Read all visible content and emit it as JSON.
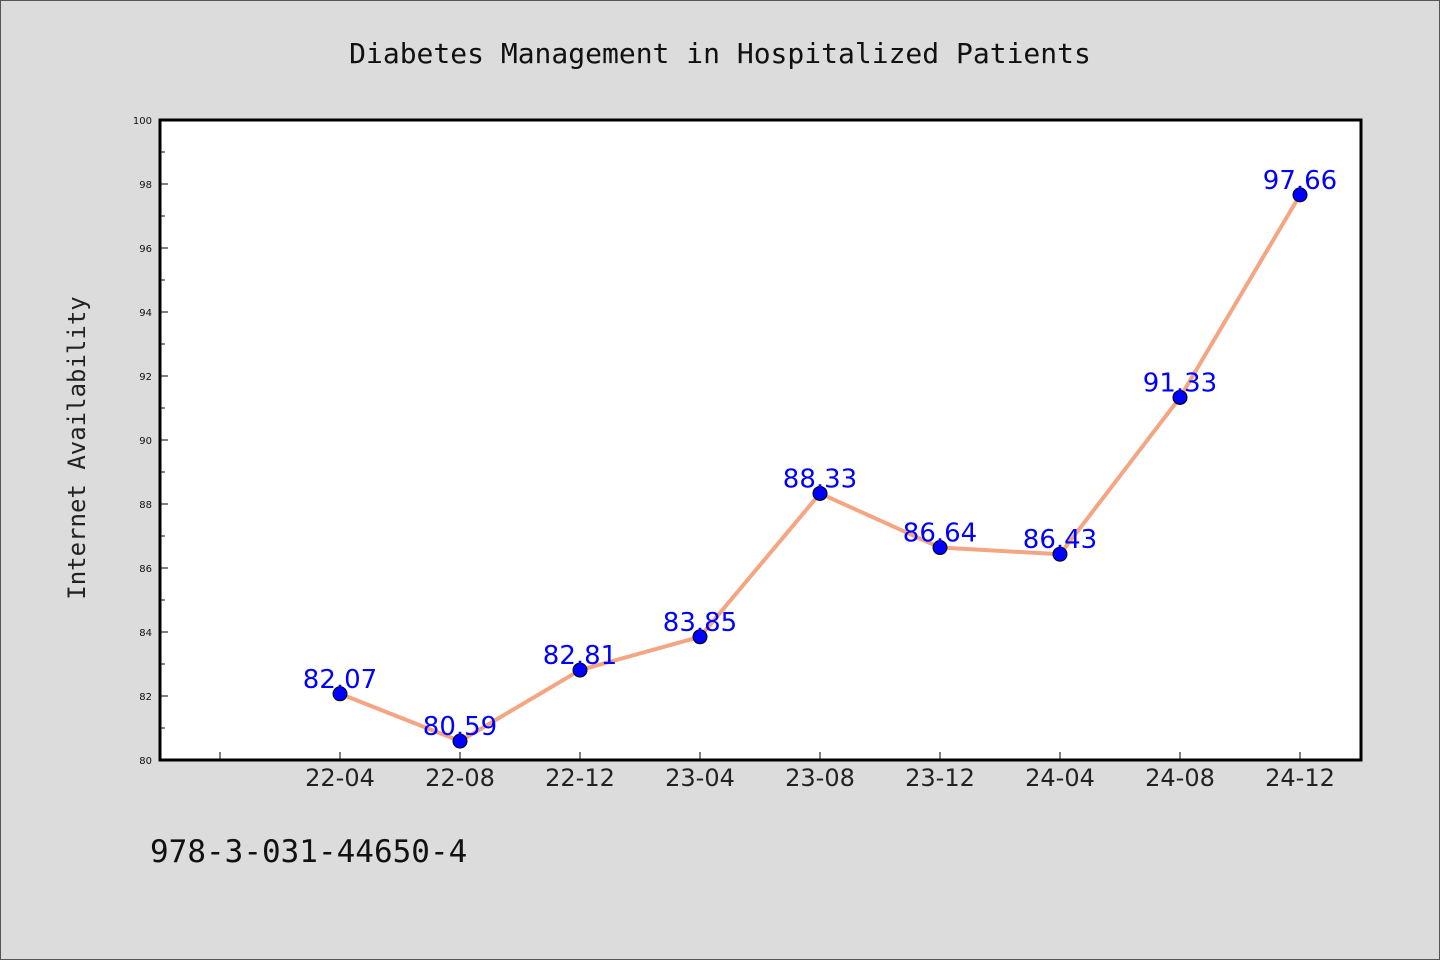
{
  "footer": {
    "isbn": "978-3-031-44650-4"
  },
  "colors": {
    "line": "#f4a582",
    "marker": "#0000ff",
    "label": "#0000ff",
    "background": "#dcdcdc",
    "plot_background": "#ffffff"
  },
  "chart_data": {
    "type": "line",
    "title": "Diabetes Management in Hospitalized Patients",
    "xlabel": "",
    "ylabel": "Internet Availability",
    "categories": [
      "22-04",
      "22-08",
      "22-12",
      "23-04",
      "23-08",
      "23-12",
      "24-04",
      "24-08",
      "24-12"
    ],
    "series": [
      {
        "values": [
          82.07,
          80.59,
          82.81,
          83.85,
          88.33,
          86.64,
          86.43,
          91.33,
          97.66
        ]
      }
    ],
    "data_labels": [
      "82.07",
      "80.59",
      "82.81",
      "83.85",
      "88.33",
      "86.64",
      "86.43",
      "91.33",
      "97.66"
    ],
    "ylim": [
      80,
      100
    ],
    "y_ticks": [
      80,
      82,
      84,
      86,
      88,
      90,
      92,
      94,
      96,
      98,
      100
    ],
    "y_tick_labels": [
      "80",
      "82",
      "84",
      "86",
      "88",
      "90",
      "92",
      "94",
      "96",
      "98",
      "100"
    ],
    "grid": false,
    "legend": "none"
  }
}
